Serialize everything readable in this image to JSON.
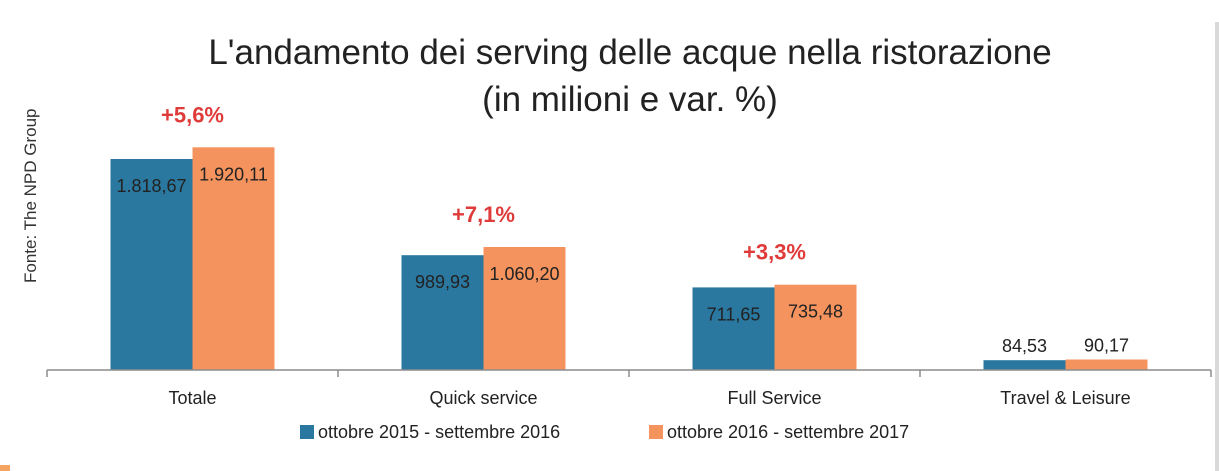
{
  "source": "Fonte: The NPD Group",
  "colors": {
    "series1": "#2a77a0",
    "series2": "#f4935e",
    "variation": "#e03b3b",
    "axis": "#8c8c8c",
    "text": "#222222"
  },
  "chart_data": {
    "type": "bar",
    "title": "L'andamento dei serving delle acque nella ristorazione",
    "subtitle": "(in milioni e var. %)",
    "categories": [
      "Totale",
      "Quick service",
      "Full Service",
      "Travel & Leisure"
    ],
    "series": [
      {
        "name": "ottobre 2015 - settembre 2016",
        "values": [
          1818.67,
          989.93,
          711.65,
          84.53
        ],
        "labels": [
          "1.818,67",
          "989,93",
          "711,65",
          "84,53"
        ]
      },
      {
        "name": "ottobre 2016 - settembre 2017",
        "values": [
          1920.11,
          1060.2,
          735.48,
          90.17
        ],
        "labels": [
          "1.920,11",
          "1.060,20",
          "735,48",
          "90,17"
        ]
      }
    ],
    "variations": [
      "+5,6%",
      "+7,1%",
      "+3,3%",
      ""
    ],
    "ylim": [
      0,
      2000
    ],
    "xlabel": "",
    "ylabel": "",
    "legend_position": "bottom"
  }
}
